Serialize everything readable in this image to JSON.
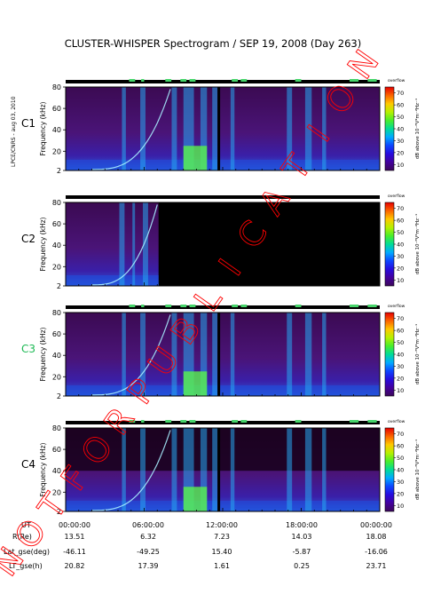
{
  "page": {
    "title": "CLUSTER-WHISPER Spectrogram / SEP 19, 2008 (Day 263)",
    "side_text": "LPCE/CNRS - aug 03, 2010",
    "watermark": "NOT FOR PUBLICATION"
  },
  "chart_data": [
    {
      "type": "heatmap",
      "panel": "C1",
      "spacecraft": "C1",
      "ylabel": "Frequency (kHz)",
      "yticks": [
        "2",
        "20",
        "40",
        "60",
        "80"
      ],
      "ylim": [
        2,
        80
      ],
      "colorbar": {
        "label": "dB above 10⁻⁸V²m⁻²Hz⁻¹",
        "ticks": [
          "10",
          "20",
          "30",
          "40",
          "50",
          "60",
          "70"
        ],
        "range": [
          5,
          75
        ],
        "corner": "overflow"
      }
    },
    {
      "type": "heatmap",
      "panel": "C2",
      "spacecraft": "C2",
      "ylabel": "Frequency (kHz)",
      "yticks": [
        "2",
        "20",
        "40",
        "60",
        "80"
      ],
      "ylim": [
        2,
        80
      ],
      "colorbar": {
        "label": "dB above 10⁻⁸V²m⁻²Hz⁻¹",
        "ticks": [
          "10",
          "20",
          "30",
          "40",
          "50",
          "60",
          "70"
        ],
        "range": [
          5,
          75
        ],
        "corner": "overflow"
      }
    },
    {
      "type": "heatmap",
      "panel": "C3",
      "spacecraft": "C3",
      "ylabel": "Frequency (kHz)",
      "yticks": [
        "2",
        "20",
        "40",
        "60",
        "80"
      ],
      "ylim": [
        2,
        80
      ],
      "colorbar": {
        "label": "dB above 10⁻⁸V²m⁻²Hz⁻¹",
        "ticks": [
          "10",
          "20",
          "30",
          "40",
          "50",
          "60",
          "70"
        ],
        "range": [
          5,
          75
        ],
        "corner": "overflow"
      }
    },
    {
      "type": "heatmap",
      "panel": "C4",
      "spacecraft": "C4",
      "ylabel": "Frequency (kHz)",
      "yticks": [
        "2",
        "20",
        "40",
        "60",
        "80"
      ],
      "ylim": [
        2,
        80
      ],
      "colorbar": {
        "label": "dB above 10⁻⁸V²m⁻²Hz⁻¹",
        "ticks": [
          "10",
          "20",
          "30",
          "40",
          "50",
          "60",
          "70"
        ],
        "range": [
          5,
          75
        ],
        "corner": "overflow"
      }
    }
  ],
  "colors": {
    "c3_label": "#1db954",
    "watermark": "#ff0000",
    "background_low": "#3b0a52",
    "gap": "#000000"
  },
  "orbit_table": {
    "rows": [
      {
        "label": "UT",
        "values": [
          "00:00:00",
          "06:00:00",
          "12:00:00",
          "18:00:00",
          "00:00:00"
        ]
      },
      {
        "label": "R(Re)",
        "values": [
          "13.51",
          "6.32",
          "7.23",
          "14.03",
          "18.08"
        ]
      },
      {
        "label": "Lat_gse(deg)",
        "values": [
          "-46.11",
          "-49.25",
          "15.40",
          "-5.87",
          "-16.06"
        ]
      },
      {
        "label": "LT_gse(h)",
        "values": [
          "20.82",
          "17.39",
          "1.61",
          "0.25",
          "23.71"
        ]
      }
    ]
  }
}
